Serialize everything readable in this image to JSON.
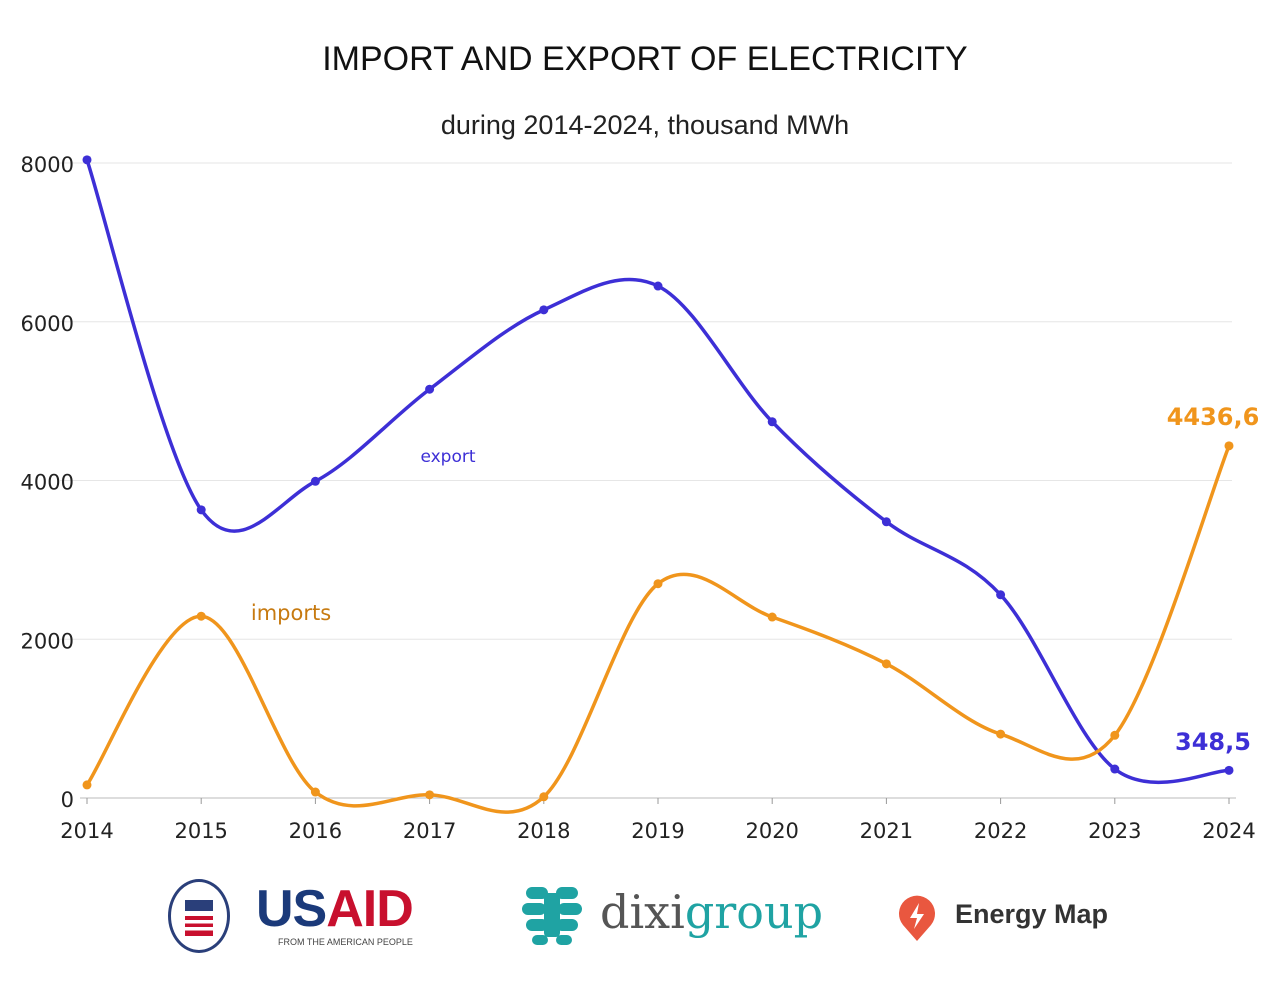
{
  "chart_data": {
    "type": "line",
    "title": "IMPORT AND EXPORT OF ELECTRICITY",
    "subtitle": "during 2014-2024, thousand MWh",
    "xlabel": "",
    "ylabel": "",
    "x": [
      "2014",
      "2015",
      "2016",
      "2017",
      "2018",
      "2019",
      "2020",
      "2021",
      "2022",
      "2023",
      "2024"
    ],
    "ylim": [
      0,
      8000
    ],
    "yticks": [
      "0",
      "2000",
      "4000",
      "6000",
      "8000"
    ],
    "ytick_values": [
      0,
      2000,
      4000,
      6000,
      8000
    ],
    "grid": true,
    "series": [
      {
        "name": "export",
        "color": "#3d2fd6",
        "values": [
          8040,
          3630,
          3990,
          5150,
          6150,
          6450,
          4740,
          3480,
          2560,
          365,
          348.5
        ],
        "end_label": "348,5"
      },
      {
        "name": "imports",
        "color": "#f0951c",
        "values": [
          165,
          2290,
          75,
          40,
          15,
          2700,
          2280,
          1690,
          805,
          790,
          4436.6
        ],
        "end_label": "4436,6"
      }
    ]
  },
  "logos": {
    "usaid": {
      "us": "US",
      "aid": "AID",
      "tagline": "FROM THE AMERICAN PEOPLE"
    },
    "dixigroup": {
      "a": "dixi",
      "b": "group"
    },
    "energy_map": {
      "name": "Energy Map"
    }
  }
}
